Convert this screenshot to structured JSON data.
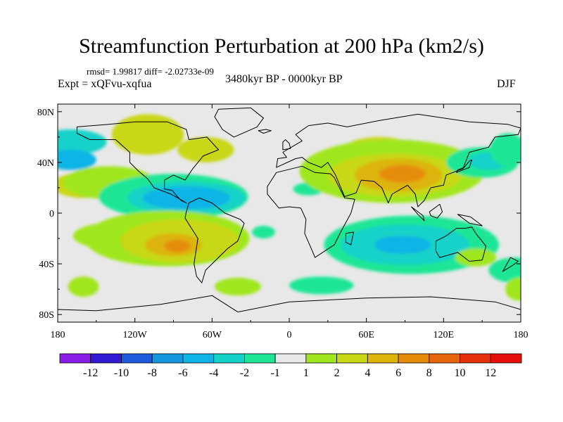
{
  "title": "Streamfunction Perturbation at 200 hPa (km2/s)",
  "stats": "rmsd= 1.99817 diff= -2.02733e-09",
  "expt": "Expt = xQFvu-xqfua",
  "period": "3480kyr BP - 0000kyr BP",
  "season": "DJF",
  "lat_ticks": [
    "80N",
    "40N",
    "0",
    "40S",
    "80S"
  ],
  "lon_ticks": [
    "180",
    "120W",
    "60W",
    "0",
    "60E",
    "120E",
    "180"
  ],
  "colorbar": {
    "labels": [
      "-12",
      "-10",
      "-8",
      "-6",
      "-4",
      "-2",
      "-1",
      "1",
      "2",
      "4",
      "6",
      "8",
      "10",
      "12"
    ],
    "colors": [
      "#8a1ee6",
      "#3219d2",
      "#1e5adc",
      "#1496e1",
      "#0fb4e6",
      "#14d2c8",
      "#1ee696",
      "#e8e8e8",
      "#a0e61e",
      "#c8d714",
      "#dcb40a",
      "#e68c0a",
      "#e6640a",
      "#e6320a",
      "#e60f0a"
    ]
  },
  "map": {
    "background": "#e8e8e8",
    "blobs": [
      {
        "lon": -170,
        "lat": 56,
        "rx": 28,
        "ry": 10,
        "level": -2
      },
      {
        "lon": -170,
        "lat": 42,
        "rx": 20,
        "ry": 8,
        "level": -4
      },
      {
        "lon": -160,
        "lat": 22,
        "rx": 24,
        "ry": 10,
        "level": 2
      },
      {
        "lon": -140,
        "lat": 24,
        "rx": 36,
        "ry": 13,
        "level": 1
      },
      {
        "lon": -110,
        "lat": 62,
        "rx": 28,
        "ry": 16,
        "level": 2
      },
      {
        "lon": -65,
        "lat": 50,
        "rx": 22,
        "ry": 10,
        "level": 2
      },
      {
        "lon": -90,
        "lat": 13,
        "rx": 58,
        "ry": 18,
        "level": -1
      },
      {
        "lon": -80,
        "lat": 12,
        "rx": 46,
        "ry": 13,
        "level": -2
      },
      {
        "lon": -80,
        "lat": 12,
        "rx": 34,
        "ry": 9,
        "level": -4
      },
      {
        "lon": -140,
        "lat": -18,
        "rx": 28,
        "ry": 10,
        "level": 1
      },
      {
        "lon": -95,
        "lat": -20,
        "rx": 64,
        "ry": 22,
        "level": 1
      },
      {
        "lon": -85,
        "lat": -22,
        "rx": 46,
        "ry": 17,
        "level": 2
      },
      {
        "lon": -90,
        "lat": -25,
        "rx": 22,
        "ry": 9,
        "level": 4
      },
      {
        "lon": -87,
        "lat": -26,
        "rx": 10,
        "ry": 5,
        "level": 6
      },
      {
        "lon": -20,
        "lat": -15,
        "rx": 9,
        "ry": 5,
        "level": -1
      },
      {
        "lon": 15,
        "lat": 19,
        "rx": 12,
        "ry": 5,
        "level": -1
      },
      {
        "lon": 25,
        "lat": -57,
        "rx": 25,
        "ry": 7,
        "level": -1
      },
      {
        "lon": 70,
        "lat": 48,
        "rx": 30,
        "ry": 12,
        "level": 2
      },
      {
        "lon": 80,
        "lat": 33,
        "rx": 72,
        "ry": 25,
        "level": 1
      },
      {
        "lon": 82,
        "lat": 30,
        "rx": 52,
        "ry": 17,
        "level": 2
      },
      {
        "lon": 85,
        "lat": 30,
        "rx": 34,
        "ry": 13,
        "level": 4
      },
      {
        "lon": 88,
        "lat": 31,
        "rx": 18,
        "ry": 7,
        "level": 6
      },
      {
        "lon": 150,
        "lat": 40,
        "rx": 28,
        "ry": 12,
        "level": -1
      },
      {
        "lon": 155,
        "lat": 41,
        "rx": 16,
        "ry": 7,
        "level": -2
      },
      {
        "lon": 95,
        "lat": -25,
        "rx": 68,
        "ry": 23,
        "level": -1
      },
      {
        "lon": 90,
        "lat": -25,
        "rx": 50,
        "ry": 16,
        "level": -2
      },
      {
        "lon": 88,
        "lat": -25,
        "rx": 22,
        "ry": 7,
        "level": -4
      },
      {
        "lon": 145,
        "lat": -35,
        "rx": 16,
        "ry": 7,
        "level": 1
      },
      {
        "lon": 170,
        "lat": 50,
        "rx": 14,
        "ry": 13,
        "level": -1
      },
      {
        "lon": 175,
        "lat": -45,
        "rx": 20,
        "ry": 10,
        "level": -1
      },
      {
        "lon": 178,
        "lat": -60,
        "rx": 10,
        "ry": 9,
        "level": 1
      },
      {
        "lon": -160,
        "lat": -58,
        "rx": 12,
        "ry": 8,
        "level": 1
      },
      {
        "lon": -40,
        "lat": -58,
        "rx": 18,
        "ry": 7,
        "level": 1
      }
    ],
    "continents": [
      {
        "name": "north-america",
        "pts": [
          [
            -165,
            68
          ],
          [
            -140,
            70
          ],
          [
            -120,
            72
          ],
          [
            -95,
            72
          ],
          [
            -80,
            66
          ],
          [
            -78,
            58
          ],
          [
            -64,
            60
          ],
          [
            -55,
            50
          ],
          [
            -67,
            45
          ],
          [
            -75,
            35
          ],
          [
            -81,
            26
          ],
          [
            -90,
            30
          ],
          [
            -97,
            26
          ],
          [
            -97,
            19
          ],
          [
            -91,
            18
          ],
          [
            -87,
            13
          ],
          [
            -84,
            10
          ],
          [
            -80,
            8
          ],
          [
            -85,
            11
          ],
          [
            -92,
            15
          ],
          [
            -105,
            20
          ],
          [
            -110,
            27
          ],
          [
            -117,
            33
          ],
          [
            -124,
            40
          ],
          [
            -124,
            48
          ],
          [
            -135,
            58
          ],
          [
            -155,
            58
          ],
          [
            -165,
            63
          ]
        ]
      },
      {
        "name": "greenland",
        "pts": [
          [
            -55,
            82
          ],
          [
            -30,
            83
          ],
          [
            -20,
            75
          ],
          [
            -25,
            68
          ],
          [
            -43,
            60
          ],
          [
            -52,
            66
          ],
          [
            -58,
            76
          ]
        ]
      },
      {
        "name": "south-america",
        "pts": [
          [
            -78,
            8
          ],
          [
            -70,
            12
          ],
          [
            -60,
            8
          ],
          [
            -50,
            0
          ],
          [
            -38,
            -5
          ],
          [
            -35,
            -8
          ],
          [
            -40,
            -22
          ],
          [
            -48,
            -28
          ],
          [
            -58,
            -38
          ],
          [
            -65,
            -45
          ],
          [
            -68,
            -55
          ],
          [
            -72,
            -50
          ],
          [
            -74,
            -40
          ],
          [
            -71,
            -20
          ],
          [
            -76,
            -12
          ],
          [
            -81,
            -4
          ],
          [
            -80,
            1
          ]
        ]
      },
      {
        "name": "eurasia",
        "pts": [
          [
            -10,
            36
          ],
          [
            -9,
            43
          ],
          [
            -2,
            44
          ],
          [
            -5,
            48
          ],
          [
            5,
            54
          ],
          [
            10,
            57
          ],
          [
            5,
            62
          ],
          [
            15,
            69
          ],
          [
            30,
            71
          ],
          [
            45,
            68
          ],
          [
            70,
            73
          ],
          [
            100,
            78
          ],
          [
            140,
            72
          ],
          [
            170,
            70
          ],
          [
            180,
            67
          ],
          [
            178,
            62
          ],
          [
            160,
            60
          ],
          [
            155,
            52
          ],
          [
            140,
            48
          ],
          [
            135,
            35
          ],
          [
            122,
            30
          ],
          [
            120,
            22
          ],
          [
            110,
            20
          ],
          [
            105,
            10
          ],
          [
            100,
            5
          ],
          [
            98,
            15
          ],
          [
            92,
            22
          ],
          [
            80,
            15
          ],
          [
            77,
            8
          ],
          [
            72,
            20
          ],
          [
            66,
            25
          ],
          [
            56,
            26
          ],
          [
            52,
            16
          ],
          [
            43,
            13
          ],
          [
            36,
            30
          ],
          [
            30,
            40
          ],
          [
            25,
            36
          ],
          [
            15,
            40
          ],
          [
            10,
            44
          ],
          [
            5,
            43
          ]
        ]
      },
      {
        "name": "africa",
        "pts": [
          [
            -17,
            21
          ],
          [
            -10,
            32
          ],
          [
            10,
            37
          ],
          [
            20,
            32
          ],
          [
            32,
            31
          ],
          [
            35,
            28
          ],
          [
            43,
            12
          ],
          [
            51,
            11
          ],
          [
            48,
            0
          ],
          [
            40,
            -15
          ],
          [
            35,
            -25
          ],
          [
            20,
            -35
          ],
          [
            18,
            -30
          ],
          [
            12,
            -16
          ],
          [
            13,
            -5
          ],
          [
            9,
            4
          ],
          [
            0,
            5
          ],
          [
            -8,
            4
          ],
          [
            -17,
            15
          ]
        ]
      },
      {
        "name": "australia",
        "pts": [
          [
            114,
            -22
          ],
          [
            122,
            -18
          ],
          [
            130,
            -12
          ],
          [
            137,
            -12
          ],
          [
            142,
            -11
          ],
          [
            145,
            -16
          ],
          [
            153,
            -26
          ],
          [
            150,
            -37
          ],
          [
            140,
            -38
          ],
          [
            131,
            -31
          ],
          [
            117,
            -35
          ],
          [
            114,
            -30
          ]
        ]
      },
      {
        "name": "antarctica",
        "pts": [
          [
            -180,
            -76
          ],
          [
            -150,
            -77
          ],
          [
            -100,
            -72
          ],
          [
            -60,
            -65
          ],
          [
            -40,
            -78
          ],
          [
            0,
            -70
          ],
          [
            60,
            -67
          ],
          [
            110,
            -66
          ],
          [
            160,
            -70
          ],
          [
            180,
            -76
          ],
          [
            180,
            -90
          ],
          [
            -180,
            -90
          ]
        ]
      },
      {
        "name": "madagascar",
        "pts": [
          [
            44,
            -16
          ],
          [
            50,
            -15
          ],
          [
            48,
            -25
          ],
          [
            44,
            -23
          ]
        ]
      },
      {
        "name": "japan",
        "pts": [
          [
            130,
            32
          ],
          [
            135,
            34
          ],
          [
            140,
            36
          ],
          [
            142,
            42
          ],
          [
            140,
            41
          ],
          [
            136,
            36
          ],
          [
            131,
            34
          ]
        ]
      },
      {
        "name": "uk",
        "pts": [
          [
            -5,
            50
          ],
          [
            1,
            51
          ],
          [
            0,
            55
          ],
          [
            -3,
            58
          ],
          [
            -5,
            56
          ]
        ]
      },
      {
        "name": "borneo",
        "pts": [
          [
            109,
            1
          ],
          [
            117,
            7
          ],
          [
            119,
            1
          ],
          [
            115,
            -4
          ],
          [
            110,
            -2
          ]
        ]
      },
      {
        "name": "sumatra",
        "pts": [
          [
            95,
            5
          ],
          [
            104,
            -2
          ],
          [
            105,
            -6
          ],
          [
            100,
            -1
          ]
        ]
      },
      {
        "name": "new-guinea",
        "pts": [
          [
            131,
            -1
          ],
          [
            141,
            -3
          ],
          [
            150,
            -10
          ],
          [
            140,
            -8
          ]
        ]
      },
      {
        "name": "new-zealand",
        "pts": [
          [
            166,
            -46
          ],
          [
            174,
            -41
          ],
          [
            178,
            -38
          ],
          [
            172,
            -35
          ]
        ]
      },
      {
        "name": "iceland",
        "pts": [
          [
            -24,
            65
          ],
          [
            -18,
            66
          ],
          [
            -14,
            65
          ],
          [
            -20,
            63
          ]
        ]
      }
    ]
  }
}
